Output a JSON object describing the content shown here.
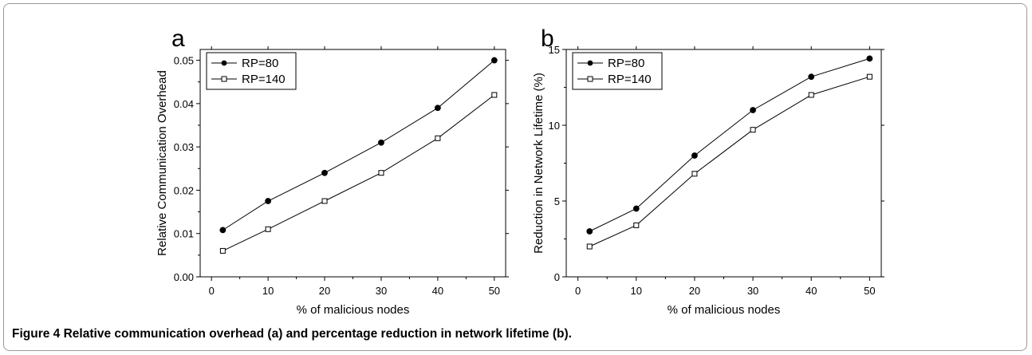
{
  "caption": {
    "label": "Figure 4",
    "text": "Relative communication overhead (a) and percentage reduction in network lifetime (b)."
  },
  "chart_data": [
    {
      "type": "line",
      "panel_label": "a",
      "xlabel": "% of malicious nodes",
      "ylabel": "Relative Communication Overhead",
      "x": [
        2,
        10,
        20,
        30,
        40,
        50
      ],
      "xlim": [
        -2,
        52
      ],
      "ylim": [
        0,
        0.0525
      ],
      "xticks": [
        0,
        10,
        20,
        30,
        40,
        50
      ],
      "yticks": [
        0.0,
        0.01,
        0.02,
        0.03,
        0.04,
        0.05
      ],
      "ytick_labels": [
        "0.00",
        "0.01",
        "0.02",
        "0.03",
        "0.04",
        "0.05"
      ],
      "legend": "top-left",
      "grid": false,
      "series": [
        {
          "name": "RP=80",
          "marker": "filled-circle",
          "values": [
            0.0108,
            0.0175,
            0.024,
            0.031,
            0.039,
            0.05
          ]
        },
        {
          "name": "RP=140",
          "marker": "open-square",
          "values": [
            0.006,
            0.011,
            0.0175,
            0.024,
            0.032,
            0.042
          ]
        }
      ]
    },
    {
      "type": "line",
      "panel_label": "b",
      "xlabel": "% of malicious nodes",
      "ylabel": "Reduction in Network Lifetime (%)",
      "x": [
        2,
        10,
        20,
        30,
        40,
        50
      ],
      "xlim": [
        -2,
        52
      ],
      "ylim": [
        0,
        15
      ],
      "xticks": [
        0,
        10,
        20,
        30,
        40,
        50
      ],
      "yticks": [
        0,
        5,
        10,
        15
      ],
      "ytick_labels": [
        "0",
        "5",
        "10",
        "15"
      ],
      "legend": "top-left",
      "grid": false,
      "series": [
        {
          "name": "RP=80",
          "marker": "filled-circle",
          "values": [
            3,
            4.5,
            8,
            11,
            13.2,
            14.4
          ]
        },
        {
          "name": "RP=140",
          "marker": "open-square",
          "values": [
            2,
            3.4,
            6.8,
            9.7,
            12,
            13.2
          ]
        }
      ]
    }
  ]
}
